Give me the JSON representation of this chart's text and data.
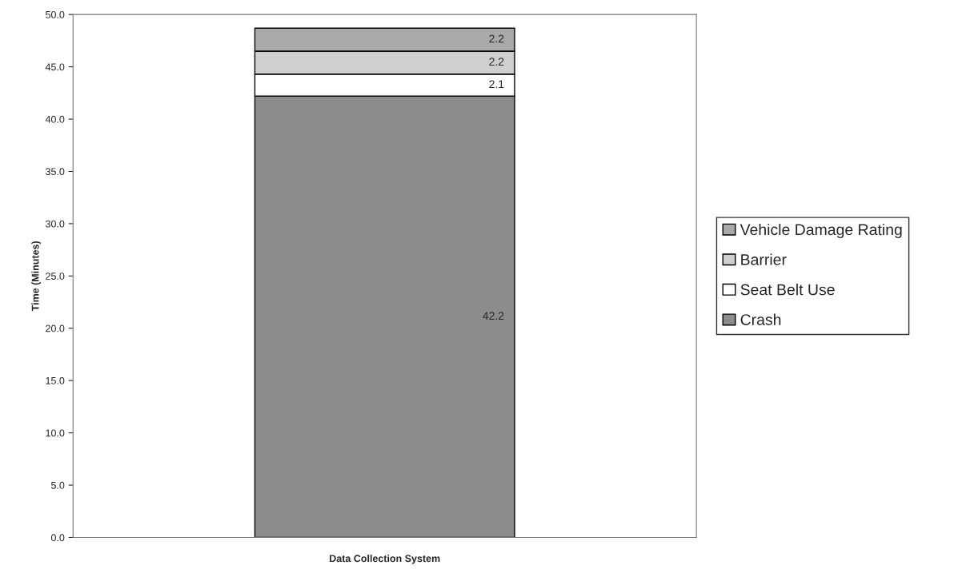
{
  "chart_data": {
    "type": "bar",
    "stacked": true,
    "xlabel": "Data Collection System",
    "ylabel": "Time (Minutes)",
    "categories": [
      null
    ],
    "series": [
      {
        "name": "Crash",
        "color": "#8c8c8c",
        "values": [
          42.2
        ]
      },
      {
        "name": "Seat Belt Use",
        "color": "#ffffff",
        "values": [
          2.1
        ]
      },
      {
        "name": "Barrier",
        "color": "#cfcfcf",
        "values": [
          2.2
        ]
      },
      {
        "name": "Vehicle Damage Rating",
        "color": "#a9a9a9",
        "values": [
          2.2
        ]
      }
    ],
    "ylim": [
      0,
      50
    ],
    "yticks": [
      {
        "value": 0,
        "label": "0.0"
      },
      {
        "value": 5,
        "label": "5.0"
      },
      {
        "value": 10,
        "label": "10.0"
      },
      {
        "value": 15,
        "label": "15.0"
      },
      {
        "value": 20,
        "label": "20.0"
      },
      {
        "value": 25,
        "label": "25.0"
      },
      {
        "value": 30,
        "label": "30.0"
      },
      {
        "value": 35,
        "label": "35.0"
      },
      {
        "value": 40,
        "label": "40.0"
      },
      {
        "value": 45,
        "label": "45.0"
      },
      {
        "value": 50,
        "label": "50.0"
      }
    ],
    "data_labels": true,
    "legend": "right",
    "grid": false
  }
}
